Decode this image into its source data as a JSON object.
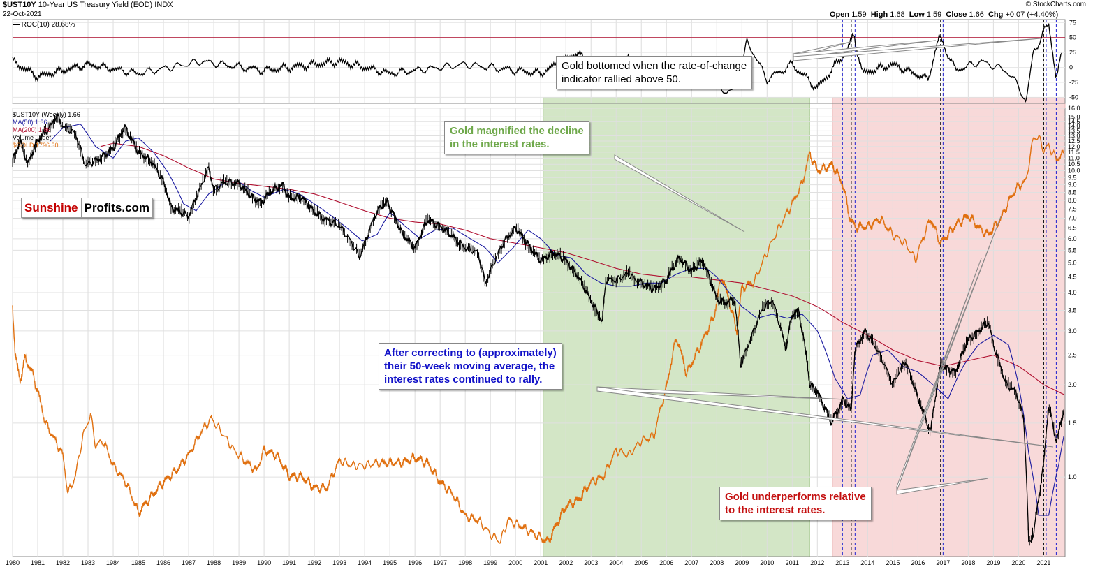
{
  "header": {
    "symbol": "$UST10Y",
    "name": "10-Year US Treasury Yield (EOD)",
    "exchange": "INDX",
    "date": "22-Oct-2021",
    "credit": "© StockCharts.com",
    "ohlc": [
      {
        "label": "Open",
        "value": "1.59"
      },
      {
        "label": "High",
        "value": "1.68"
      },
      {
        "label": "Low",
        "value": "1.59"
      },
      {
        "label": "Close",
        "value": "1.66"
      },
      {
        "label": "Chg",
        "value": "+0.07 (+4.40%)"
      }
    ]
  },
  "roc_panel": {
    "label": "ROC(10) 28.68%",
    "ticks": [
      "75",
      "50",
      "25",
      "0",
      "-25",
      "-50"
    ]
  },
  "legend": [
    {
      "text": "$UST10Y (Weekly) 1.66",
      "color": "#000000"
    },
    {
      "text": "MA(50) 1.36",
      "color": "#1a1aa0"
    },
    {
      "text": "MA(200) 1.86",
      "color": "#b01030"
    },
    {
      "text": "Volume undef",
      "color": "#000000"
    },
    {
      "text": "$GOLD 1796.30",
      "color": "#e07010"
    }
  ],
  "logo": {
    "part1": "Sunshine",
    "part2": "Profits.com"
  },
  "callouts": {
    "roc": [
      "Gold bottomed when the rate-of-change",
      "indicator rallied above 50."
    ],
    "green": [
      "Gold magnified the decline",
      "in the interest rates."
    ],
    "blue": [
      "After correcting to (approximately)",
      "their 50-week moving average, the",
      "interest rates continued to rally."
    ],
    "red": [
      "Gold underperforms relative",
      "to the interest rates."
    ]
  },
  "colors": {
    "price": "#000000",
    "ma50": "#1a1aa0",
    "ma200": "#b01030",
    "gold": "#e07010",
    "green_zone": "#c8e0b8",
    "red_zone": "#f6d0d0",
    "roc_line": "#000000",
    "roc_threshold": "#b01030"
  },
  "chart_data": {
    "type": "line",
    "x_axis": {
      "labels": [
        "1980",
        "1981",
        "1982",
        "1983",
        "1984",
        "1985",
        "1986",
        "1987",
        "1988",
        "1989",
        "1990",
        "1991",
        "1992",
        "1993",
        "1994",
        "1995",
        "1996",
        "1997",
        "1998",
        "1999",
        "2000",
        "2001",
        "2002",
        "2003",
        "2004",
        "2005",
        "2006",
        "2007",
        "2008",
        "2009",
        "2010",
        "2011",
        "2012",
        "2013",
        "2014",
        "2015",
        "2016",
        "2017",
        "2018",
        "2019",
        "2020",
        "2021"
      ],
      "range": [
        1980,
        2021.85
      ]
    },
    "y_axis_main": {
      "scale": "log",
      "ticks": [
        "16.0",
        "15.0",
        "14.5",
        "14.0",
        "13.5",
        "13.0",
        "12.5",
        "12.0",
        "11.5",
        "11.0",
        "10.5",
        "10.0",
        "9.5",
        "9.0",
        "8.5",
        "8.0",
        "7.5",
        "7.0",
        "6.5",
        "6.0",
        "5.5",
        "5.0",
        "4.5",
        "4.0",
        "3.5",
        "3.0",
        "2.5",
        "2.0",
        "1.5",
        "1.0"
      ]
    },
    "highlight_zones": [
      {
        "from": 2001.1,
        "to": 2011.7,
        "color": "green"
      },
      {
        "from": 2012.6,
        "to": 2021.85,
        "color": "red"
      }
    ],
    "vertical_markers": [
      {
        "x": 2013.0,
        "style": "blue-dashed"
      },
      {
        "x": 2013.35,
        "style": "black-dashed"
      },
      {
        "x": 2013.5,
        "style": "blue-dashed"
      },
      {
        "x": 2016.9,
        "style": "black-dashed"
      },
      {
        "x": 2017.0,
        "style": "blue-dashed"
      },
      {
        "x": 2021.0,
        "style": "black-dashed"
      },
      {
        "x": 2021.1,
        "style": "blue-dashed"
      },
      {
        "x": 2021.5,
        "style": "blue-dashed"
      }
    ],
    "series": [
      {
        "name": "$UST10Y (Weekly)",
        "x": [
          1980.0,
          1980.3,
          1980.6,
          1981.0,
          1981.5,
          1981.75,
          1982.0,
          1982.5,
          1982.9,
          1983.5,
          1984.0,
          1984.45,
          1985.0,
          1985.5,
          1986.0,
          1986.3,
          1986.7,
          1987.0,
          1987.5,
          1987.8,
          1988.0,
          1988.5,
          1989.0,
          1989.5,
          1989.9,
          1990.3,
          1990.75,
          1991.0,
          1991.5,
          1992.0,
          1992.5,
          1993.0,
          1993.5,
          1993.8,
          1994.0,
          1994.5,
          1994.9,
          1995.5,
          1996.0,
          1996.5,
          1997.0,
          1997.5,
          1998.0,
          1998.5,
          1998.8,
          1999.0,
          1999.5,
          2000.0,
          2000.4,
          2000.8,
          2001.0,
          2001.5,
          2002.0,
          2002.5,
          2002.9,
          2003.45,
          2003.6,
          2004.0,
          2004.45,
          2005.0,
          2005.5,
          2006.0,
          2006.5,
          2007.0,
          2007.45,
          2008.0,
          2008.3,
          2008.7,
          2008.95,
          2009.4,
          2009.8,
          2010.2,
          2010.75,
          2011.0,
          2011.25,
          2011.7,
          2012.0,
          2012.55,
          2012.9,
          2013.0,
          2013.35,
          2013.5,
          2013.9,
          2014.5,
          2015.0,
          2015.5,
          2016.0,
          2016.5,
          2016.9,
          2017.5,
          2018.0,
          2018.8,
          2019.0,
          2019.5,
          2019.9,
          2020.2,
          2020.4,
          2020.6,
          2020.8,
          2021.0,
          2021.2,
          2021.5,
          2021.6,
          2021.8
        ],
        "values": [
          10.8,
          12.5,
          10.5,
          12.6,
          13.9,
          15.2,
          14.0,
          13.2,
          10.4,
          11.0,
          11.8,
          13.9,
          11.5,
          10.8,
          9.2,
          7.6,
          7.3,
          7.1,
          8.9,
          10.2,
          8.7,
          9.2,
          9.1,
          8.2,
          7.9,
          8.6,
          9.0,
          8.1,
          8.2,
          7.3,
          6.9,
          6.6,
          5.8,
          5.2,
          5.8,
          7.4,
          7.9,
          6.2,
          5.6,
          6.9,
          6.6,
          6.1,
          5.6,
          5.4,
          4.3,
          4.7,
          5.8,
          6.5,
          5.9,
          5.3,
          5.1,
          5.4,
          5.1,
          4.5,
          3.9,
          3.2,
          4.4,
          4.4,
          4.6,
          4.3,
          4.1,
          4.4,
          5.2,
          4.7,
          5.1,
          3.8,
          3.7,
          3.8,
          2.3,
          2.9,
          3.5,
          3.8,
          2.6,
          3.4,
          3.5,
          2.0,
          1.9,
          1.5,
          1.7,
          1.8,
          1.65,
          2.6,
          3.0,
          2.5,
          2.0,
          2.4,
          1.8,
          1.4,
          2.3,
          2.2,
          2.8,
          3.2,
          2.7,
          2.0,
          1.9,
          1.55,
          0.6,
          0.65,
          0.85,
          1.1,
          1.7,
          1.3,
          1.4,
          1.66
        ]
      },
      {
        "name": "MA(50)",
        "x": [
          1981.5,
          1982.0,
          1982.7,
          1983.3,
          1984.0,
          1984.5,
          1985.0,
          1985.6,
          1986.2,
          1986.8,
          1987.3,
          1987.8,
          1988.5,
          1989.0,
          1989.5,
          1990.0,
          1990.8,
          1991.4,
          1992.0,
          1992.6,
          1993.2,
          1993.9,
          1994.5,
          1995.0,
          1995.6,
          1996.2,
          1996.8,
          1997.5,
          1998.2,
          1998.8,
          1999.3,
          1999.9,
          2000.5,
          2001.0,
          2001.6,
          2002.2,
          2002.8,
          2003.4,
          2004.0,
          2004.6,
          2005.2,
          2005.8,
          2006.4,
          2007.0,
          2007.6,
          2008.0,
          2008.5,
          2009.0,
          2009.6,
          2010.2,
          2010.8,
          2011.4,
          2012.0,
          2012.7,
          2013.2,
          2013.7,
          2014.2,
          2014.8,
          2015.4,
          2016.0,
          2016.6,
          2017.2,
          2017.8,
          2018.4,
          2019.0,
          2019.6,
          2020.0,
          2020.4,
          2020.8,
          2021.2,
          2021.6,
          2021.8
        ],
        "values": [
          12.5,
          13.8,
          14.2,
          12.0,
          11.0,
          12.5,
          12.8,
          11.5,
          9.8,
          7.8,
          7.4,
          8.4,
          9.2,
          9.2,
          8.6,
          8.2,
          8.7,
          8.4,
          7.8,
          7.2,
          6.6,
          5.9,
          6.2,
          7.3,
          6.6,
          6.0,
          6.4,
          6.5,
          6.0,
          5.6,
          5.0,
          5.6,
          6.4,
          6.0,
          5.3,
          5.2,
          4.6,
          4.3,
          4.2,
          4.2,
          4.3,
          4.3,
          4.6,
          4.8,
          4.8,
          4.5,
          4.0,
          3.6,
          3.3,
          3.4,
          3.3,
          3.4,
          3.0,
          2.1,
          1.8,
          1.85,
          2.5,
          2.6,
          2.3,
          2.2,
          2.0,
          1.8,
          2.3,
          2.7,
          2.9,
          2.7,
          2.0,
          1.2,
          0.75,
          0.75,
          1.1,
          1.36
        ]
      },
      {
        "name": "MA(200)",
        "x": [
          1983.5,
          1984.0,
          1985.0,
          1986.0,
          1987.0,
          1988.0,
          1989.0,
          1990.0,
          1991.0,
          1992.0,
          1993.0,
          1994.0,
          1995.0,
          1996.0,
          1997.0,
          1998.0,
          1999.0,
          2000.0,
          2001.0,
          2002.0,
          2003.0,
          2004.0,
          2005.0,
          2006.0,
          2007.0,
          2008.0,
          2009.0,
          2010.0,
          2011.0,
          2012.0,
          2013.0,
          2014.0,
          2015.0,
          2016.0,
          2017.0,
          2018.0,
          2019.0,
          2020.0,
          2021.0,
          2021.8
        ],
        "values": [
          12.0,
          12.3,
          12.0,
          11.2,
          10.2,
          9.4,
          9.1,
          8.9,
          8.7,
          8.4,
          7.9,
          7.4,
          7.0,
          6.8,
          6.7,
          6.4,
          6.0,
          5.8,
          5.6,
          5.4,
          5.1,
          4.8,
          4.6,
          4.5,
          4.5,
          4.4,
          4.3,
          4.1,
          3.9,
          3.6,
          3.2,
          2.9,
          2.6,
          2.4,
          2.3,
          2.4,
          2.5,
          2.3,
          2.0,
          1.86
        ]
      },
      {
        "name": "$GOLD",
        "x": [
          1980.0,
          1980.1,
          1980.3,
          1980.5,
          1980.8,
          1981.0,
          1981.3,
          1981.6,
          1982.0,
          1982.2,
          1982.5,
          1982.8,
          1983.1,
          1983.3,
          1983.6,
          1984.0,
          1984.5,
          1985.0,
          1985.2,
          1985.6,
          1986.0,
          1986.5,
          1987.0,
          1987.5,
          1987.9,
          1988.3,
          1988.8,
          1989.2,
          1989.7,
          1990.0,
          1990.5,
          1991.0,
          1991.5,
          1992.0,
          1992.5,
          1993.0,
          1993.5,
          1994.0,
          1994.5,
          1995.0,
          1995.5,
          1996.0,
          1996.5,
          1997.0,
          1997.5,
          1998.0,
          1998.5,
          1999.0,
          1999.4,
          1999.7,
          2000.0,
          2000.5,
          2001.0,
          2001.3,
          2002.0,
          2002.5,
          2003.0,
          2003.5,
          2004.0,
          2004.5,
          2005.0,
          2005.5,
          2006.0,
          2006.4,
          2006.8,
          2007.3,
          2007.9,
          2008.2,
          2008.8,
          2009.0,
          2009.5,
          2010.0,
          2010.5,
          2011.0,
          2011.4,
          2011.7,
          2012.0,
          2012.6,
          2013.0,
          2013.3,
          2013.5,
          2014.0,
          2014.5,
          2015.0,
          2015.5,
          2015.9,
          2016.5,
          2016.9,
          2017.5,
          2018.0,
          2018.5,
          2018.8,
          2019.3,
          2019.7,
          2020.0,
          2020.3,
          2020.6,
          2020.8,
          2021.0,
          2021.2,
          2021.5,
          2021.8
        ],
        "values": [
          850,
          660,
          580,
          650,
          600,
          550,
          470,
          440,
          400,
          330,
          360,
          440,
          490,
          420,
          430,
          380,
          350,
          300,
          310,
          330,
          350,
          370,
          400,
          450,
          480,
          450,
          410,
          390,
          370,
          410,
          400,
          360,
          360,
          340,
          340,
          390,
          380,
          380,
          385,
          385,
          386,
          395,
          385,
          350,
          330,
          295,
          290,
          270,
          260,
          290,
          285,
          275,
          265,
          260,
          310,
          320,
          350,
          360,
          410,
          400,
          430,
          440,
          560,
          720,
          600,
          680,
          800,
          980,
          740,
          920,
          950,
          1100,
          1250,
          1400,
          1550,
          1800,
          1650,
          1700,
          1550,
          1300,
          1250,
          1250,
          1300,
          1200,
          1150,
          1060,
          1300,
          1150,
          1260,
          1320,
          1230,
          1200,
          1300,
          1450,
          1530,
          1570,
          1950,
          1950,
          1830,
          1870,
          1750,
          1796.3
        ]
      }
    ],
    "roc_series": {
      "name": "ROC(10)",
      "y_range": [
        -60,
        80
      ],
      "threshold": 50,
      "x": [
        1980.0,
        1981.0,
        1983.0,
        1985.0,
        1987.5,
        1990.0,
        1993.0,
        1995.0,
        1998.0,
        2001.0,
        2002.5,
        2003.4,
        2004.5,
        2006.0,
        2007.5,
        2008.4,
        2008.9,
        2009.2,
        2010.0,
        2011.0,
        2012.0,
        2013.2,
        2013.45,
        2013.8,
        2015.0,
        2016.4,
        2016.85,
        2017.5,
        2018.5,
        2019.5,
        2020.0,
        2020.3,
        2020.6,
        2020.9,
        2021.0,
        2021.2,
        2021.5,
        2021.75
      ],
      "values": [
        10,
        -15,
        5,
        -10,
        10,
        -5,
        10,
        -10,
        5,
        -10,
        25,
        -30,
        15,
        -10,
        10,
        -45,
        -30,
        45,
        -20,
        5,
        -35,
        30,
        55,
        -10,
        5,
        -20,
        52,
        -5,
        10,
        -5,
        -30,
        -60,
        30,
        45,
        60,
        75,
        -20,
        28.68
      ]
    }
  }
}
